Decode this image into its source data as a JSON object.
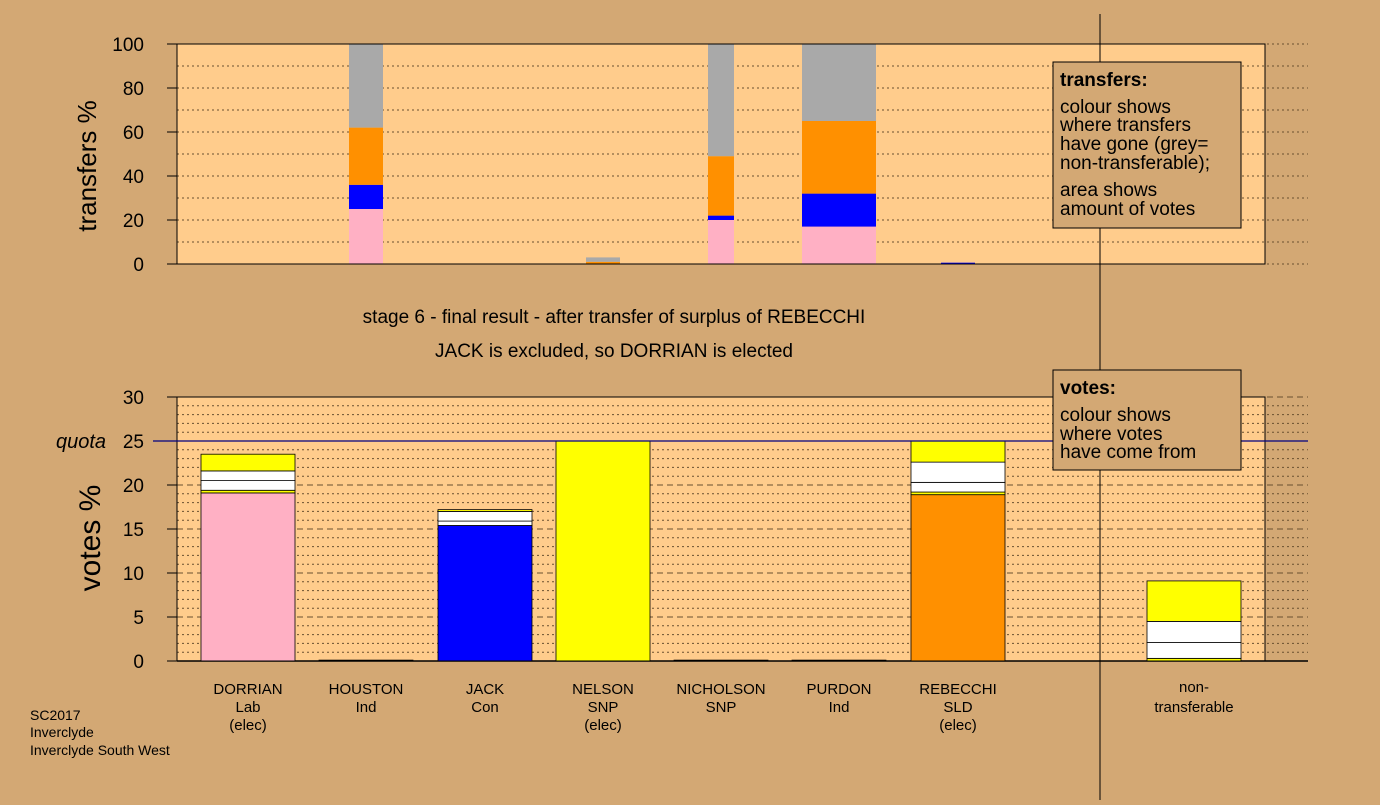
{
  "colors": {
    "background": "#d3a874",
    "plot_bg": "#ffcc8c",
    "Lab": "#ffb0c4",
    "Con": "#0000ff",
    "SNP": "#ffff00",
    "SLD": "#ff9000",
    "nontransferable": "#a9a9a9",
    "transfer_white": "#ffffff"
  },
  "stage_title": "stage 6 - final result - after transfer of surplus of REBECCHI",
  "stage_subtitle": "JACK is excluded, so DORRIAN is elected",
  "transfers_legend": {
    "title": "transfers:",
    "lines": [
      "colour shows",
      "where transfers",
      "have gone (grey=",
      "non-transferable);",
      "area shows",
      "amount of votes"
    ]
  },
  "votes_legend": {
    "title": "votes:",
    "lines": [
      "colour shows",
      "where votes",
      "have come from"
    ]
  },
  "footer": [
    "SC2017",
    "Inverclyde",
    "Inverclyde South West"
  ],
  "chart_data": [
    {
      "type": "bar",
      "name": "transfers",
      "ylabel": "transfers %",
      "ylim": [
        0,
        100
      ],
      "yticks": [
        0,
        20,
        40,
        60,
        80,
        100
      ],
      "grid": "dotted horizontal",
      "note": "stacked percentage of transfers from each candidate; bar width proportional to amount of votes transferred",
      "bars": [
        {
          "slot": 1,
          "width_units": 1.0,
          "segments": [
            {
              "color_key": "Lab",
              "value": 25
            },
            {
              "color_key": "Con",
              "value": 11
            },
            {
              "color_key": "SLD",
              "value": 26
            },
            {
              "color_key": "nontransferable",
              "value": 38
            }
          ]
        },
        {
          "slot": 3,
          "width_units": 1.0,
          "height": 3,
          "segments": [
            {
              "color_key": "SLD",
              "value": 1
            },
            {
              "color_key": "nontransferable",
              "value": 2
            }
          ]
        },
        {
          "slot": 4,
          "width_units": 1.0,
          "segments": [
            {
              "color_key": "Lab",
              "value": 20
            },
            {
              "color_key": "Con",
              "value": 2
            },
            {
              "color_key": "SLD",
              "value": 27
            },
            {
              "color_key": "nontransferable",
              "value": 51
            }
          ]
        },
        {
          "slot": 5,
          "width_units": 1.0,
          "segments": [
            {
              "color_key": "Lab",
              "value": 17
            },
            {
              "color_key": "Con",
              "value": 15
            },
            {
              "color_key": "SLD",
              "value": 33
            },
            {
              "color_key": "nontransferable",
              "value": 35
            }
          ]
        },
        {
          "slot": 6,
          "width_units": 1.0,
          "height": 0.6,
          "segments": [
            {
              "color_key": "Con",
              "value": 0.6
            }
          ]
        }
      ]
    },
    {
      "type": "bar",
      "name": "votes",
      "ylabel": "votes %",
      "ylim": [
        0,
        30
      ],
      "yticks": [
        0,
        5,
        10,
        15,
        20,
        25,
        30
      ],
      "quota": 25,
      "quota_label": "quota",
      "grid": "dashed major, dotted minor",
      "categories": [
        {
          "name": "DORRIAN",
          "party": "Lab",
          "note": "(elec)"
        },
        {
          "name": "HOUSTON",
          "party": "Ind",
          "note": ""
        },
        {
          "name": "JACK",
          "party": "Con",
          "note": ""
        },
        {
          "name": "NELSON",
          "party": "SNP",
          "note": "(elec)"
        },
        {
          "name": "NICHOLSON",
          "party": "SNP",
          "note": ""
        },
        {
          "name": "PURDON",
          "party": "Ind",
          "note": ""
        },
        {
          "name": "REBECCHI",
          "party": "SLD",
          "note": "(elec)"
        }
      ],
      "nontransferable_label": [
        "non-",
        "transferable"
      ],
      "bars": [
        {
          "category": "DORRIAN",
          "segments": [
            {
              "color_key": "Lab",
              "value": 19.1
            },
            {
              "color_key": "SNP",
              "value": 0.3
            },
            {
              "color_key": "transfer_white",
              "value": 1.1
            },
            {
              "color_key": "transfer_white",
              "value": 1.1
            },
            {
              "color_key": "SNP",
              "value": 1.9
            }
          ]
        },
        {
          "category": "HOUSTON",
          "segments": [
            {
              "color_key": "transfer_white",
              "value": 0.1
            }
          ]
        },
        {
          "category": "JACK",
          "segments": [
            {
              "color_key": "Con",
              "value": 15.4
            },
            {
              "color_key": "transfer_white",
              "value": 0.5
            },
            {
              "color_key": "transfer_white",
              "value": 1.1
            },
            {
              "color_key": "SNP",
              "value": 0.2
            }
          ]
        },
        {
          "category": "NELSON",
          "segments": [
            {
              "color_key": "SNP",
              "value": 25.0
            }
          ]
        },
        {
          "category": "NICHOLSON",
          "segments": [
            {
              "color_key": "transfer_white",
              "value": 0.1
            }
          ]
        },
        {
          "category": "PURDON",
          "segments": [
            {
              "color_key": "transfer_white",
              "value": 0.1
            }
          ]
        },
        {
          "category": "REBECCHI",
          "segments": [
            {
              "color_key": "SLD",
              "value": 18.9
            },
            {
              "color_key": "SNP",
              "value": 0.3
            },
            {
              "color_key": "transfer_white",
              "value": 1.1
            },
            {
              "color_key": "transfer_white",
              "value": 2.3
            },
            {
              "color_key": "SNP",
              "value": 2.4
            }
          ]
        },
        {
          "category": "non-transferable",
          "segments": [
            {
              "color_key": "SNP",
              "value": 0.3
            },
            {
              "color_key": "transfer_white",
              "value": 1.8
            },
            {
              "color_key": "transfer_white",
              "value": 2.4
            },
            {
              "color_key": "SNP",
              "value": 4.6
            }
          ]
        }
      ]
    }
  ]
}
